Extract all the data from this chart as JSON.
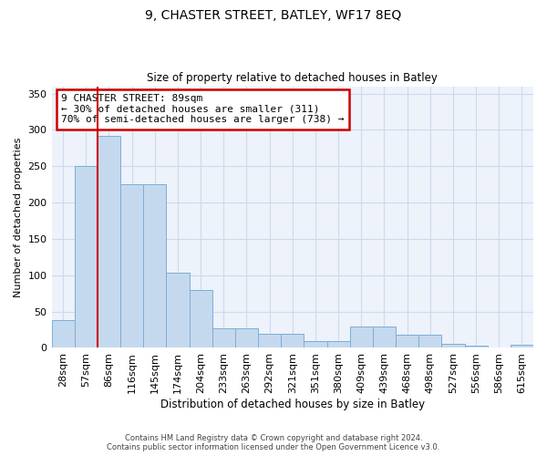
{
  "title": "9, CHASTER STREET, BATLEY, WF17 8EQ",
  "subtitle": "Size of property relative to detached houses in Batley",
  "xlabel": "Distribution of detached houses by size in Batley",
  "ylabel": "Number of detached properties",
  "bar_color": "#c5d9ee",
  "bar_edge_color": "#7aaed6",
  "grid_color": "#d0d8eb",
  "background_color": "#edf2fb",
  "tick_labels": [
    "28sqm",
    "57sqm",
    "86sqm",
    "116sqm",
    "145sqm",
    "174sqm",
    "204sqm",
    "233sqm",
    "263sqm",
    "292sqm",
    "321sqm",
    "351sqm",
    "380sqm",
    "409sqm",
    "439sqm",
    "468sqm",
    "498sqm",
    "527sqm",
    "556sqm",
    "586sqm",
    "615sqm"
  ],
  "bar_values": [
    38,
    250,
    292,
    225,
    225,
    104,
    79,
    27,
    27,
    19,
    19,
    9,
    9,
    30,
    30,
    18,
    18,
    5,
    3,
    0,
    4
  ],
  "ylim": [
    0,
    360
  ],
  "yticks": [
    0,
    50,
    100,
    150,
    200,
    250,
    300,
    350
  ],
  "vline_x": 1.5,
  "annotation_text_line1": "9 CHASTER STREET: 89sqm",
  "annotation_text_line2": "← 30% of detached houses are smaller (311)",
  "annotation_text_line3": "70% of semi-detached houses are larger (738) →",
  "annotation_box_color": "white",
  "annotation_border_color": "#cc0000",
  "vline_color": "#cc0000",
  "footer_line1": "Contains HM Land Registry data © Crown copyright and database right 2024.",
  "footer_line2": "Contains public sector information licensed under the Open Government Licence v3.0."
}
